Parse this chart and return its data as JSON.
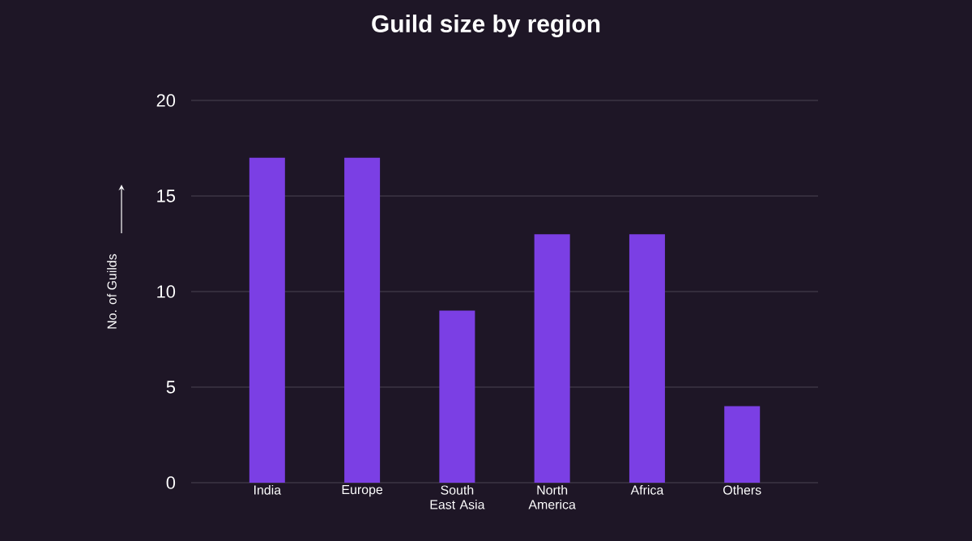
{
  "chart_data": {
    "type": "bar",
    "title": "Guild size by region",
    "ylabel": "No. of Guilds",
    "categories": [
      "India",
      "Europe",
      "South East Asia",
      "North America",
      "Africa",
      "Others"
    ],
    "values": [
      17,
      17,
      9,
      13,
      13,
      4
    ],
    "color": "#7b3fe4",
    "ylim": [
      0,
      20
    ],
    "yticks": [
      0,
      5,
      10,
      15,
      20
    ],
    "grid": "y"
  }
}
